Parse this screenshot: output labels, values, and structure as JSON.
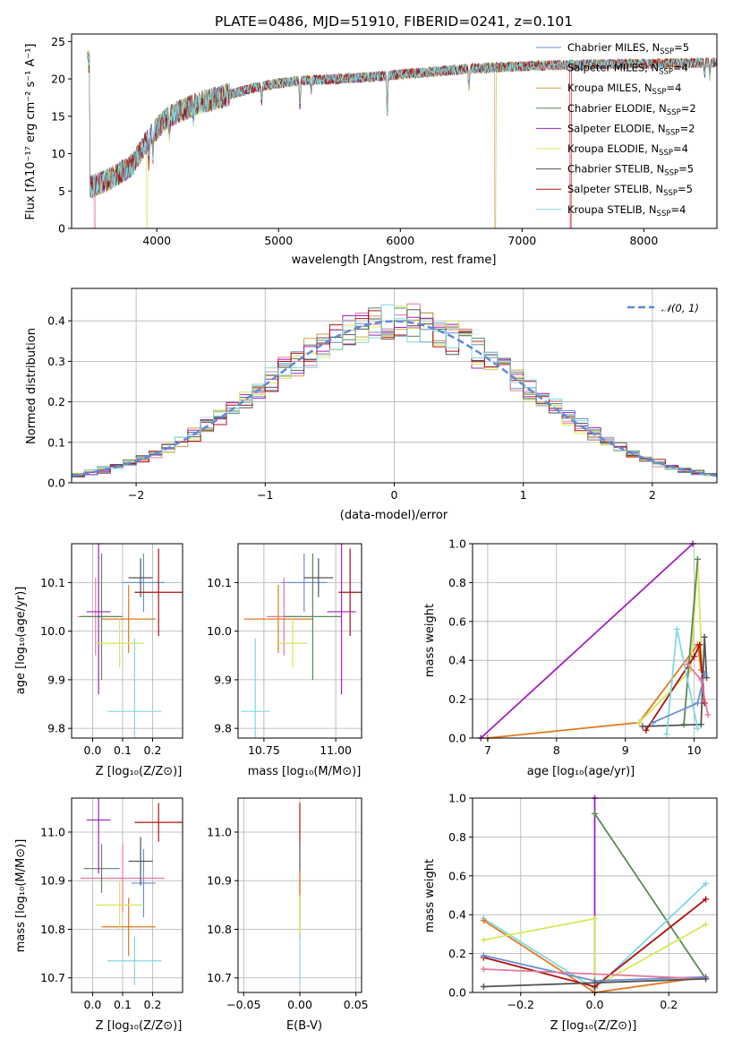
{
  "title": "PLATE=0486, MJD=51910, FIBERID=0241, z=0.101",
  "colors": {
    "Chabrier MILES": "#6a8fd6",
    "Salpeter MILES": "#e07a9a",
    "Kroupa MILES": "#c9a24b",
    "Chabrier ELODIE": "#5a8a5a",
    "Salpeter ELODIE": "#a020c0",
    "Kroupa ELODIE": "#d6e85a",
    "Chabrier STELIB": "#555555",
    "Salpeter STELIB": "#b01010",
    "Kroupa STELIB": "#80d8e0",
    "orange": "#e07a20",
    "gaussian": "#5b8bd9"
  },
  "panel1": {
    "xlabel": "wavelength [Angstrom, rest frame]",
    "ylabel": "Flux [fλ10⁻¹⁷ erg cm⁻² s⁻¹ A⁻¹]",
    "legend": [
      {
        "model": "Chabrier MILES",
        "label": "Chabrier MILES, N",
        "sub": "SSP",
        "n": "=5"
      },
      {
        "model": "Salpeter MILES",
        "label": "Salpeter MILES, N",
        "sub": "SSP",
        "n": "=4"
      },
      {
        "model": "Kroupa MILES",
        "label": "Kroupa MILES, N",
        "sub": "SSP",
        "n": "=4"
      },
      {
        "model": "Chabrier ELODIE",
        "label": "Chabrier ELODIE, N",
        "sub": "SSP",
        "n": "=2"
      },
      {
        "model": "Salpeter ELODIE",
        "label": "Salpeter ELODIE, N",
        "sub": "SSP",
        "n": "=2"
      },
      {
        "model": "Kroupa ELODIE",
        "label": "Kroupa ELODIE, N",
        "sub": "SSP",
        "n": "=4"
      },
      {
        "model": "Chabrier STELIB",
        "label": "Chabrier STELIB, N",
        "sub": "SSP",
        "n": "=5"
      },
      {
        "model": "Salpeter STELIB",
        "label": "Salpeter STELIB, N",
        "sub": "SSP",
        "n": "=5"
      },
      {
        "model": "Kroupa STELIB",
        "label": "Kroupa STELIB, N",
        "sub": "SSP",
        "n": "=4"
      }
    ]
  },
  "panel2": {
    "xlabel": "(data-model)/error",
    "ylabel": "Normed distribution",
    "legend_label": "𝒩(0, 1)"
  },
  "panel3": {
    "xlabel": "Z [log₁₀(Z/Z⊙)]",
    "ylabel": "age  [log₁₀(age/yr)]"
  },
  "panel4": {
    "xlabel": "mass [log₁₀(M/M⊙)]"
  },
  "panel5": {
    "xlabel": "age  [log₁₀(age/yr)]",
    "ylabel": "mass weight"
  },
  "panel6": {
    "xlabel": "Z [log₁₀(Z/Z⊙)]",
    "ylabel": "mass [log₁₀(M/M⊙)]"
  },
  "panel7": {
    "xlabel": "E(B-V)"
  },
  "panel8": {
    "xlabel": "Z [log₁₀(Z/Z⊙)]",
    "ylabel": "mass weight"
  },
  "chart_data": [
    {
      "type": "line",
      "id": "spectrum",
      "xlim": [
        3300,
        8600
      ],
      "ylim": [
        0,
        26
      ],
      "xticks": [
        4000,
        5000,
        6000,
        7000,
        8000
      ],
      "yticks": [
        0,
        5,
        10,
        15,
        20,
        25
      ],
      "grid": false,
      "legend_position": "top-right",
      "continuum": {
        "x": [
          3450,
          3600,
          3800,
          3950,
          4100,
          4300,
          4500,
          4800,
          5000,
          5200,
          5500,
          5800,
          6000,
          6300,
          6600,
          6900,
          7200,
          7500,
          7800,
          8100,
          8300,
          8600
        ],
        "y": [
          5.5,
          6.5,
          8.5,
          12.5,
          15.0,
          16.5,
          17.5,
          18.8,
          19.4,
          19.8,
          20.0,
          20.3,
          20.6,
          21.0,
          21.4,
          21.6,
          21.8,
          21.9,
          22.0,
          22.0,
          22.1,
          22.2
        ]
      },
      "dropouts": [
        {
          "model": "Salpeter MILES",
          "x": 3490
        },
        {
          "model": "Kroupa ELODIE",
          "x": 3920
        },
        {
          "model": "Kroupa MILES",
          "x": 6780
        },
        {
          "model": "Salpeter STELIB",
          "x": 7400
        }
      ]
    },
    {
      "type": "histogram",
      "id": "residuals",
      "xlim": [
        -2.5,
        2.5
      ],
      "ylim": [
        0,
        0.48
      ],
      "xticks": [
        -2,
        -1,
        0,
        1,
        2
      ],
      "yticks": [
        0.0,
        0.1,
        0.2,
        0.3,
        0.4
      ],
      "grid": true,
      "legend_position": "top-right",
      "bin_width": 0.1,
      "gaussian": {
        "mean": 0,
        "sigma": 1
      }
    },
    {
      "type": "errorbar",
      "id": "age-vs-Z",
      "xlim": [
        -0.07,
        0.3
      ],
      "ylim": [
        9.78,
        10.18
      ],
      "xticks": [
        0.0,
        0.1,
        0.2
      ],
      "yticks": [
        9.8,
        9.9,
        10.0,
        10.1
      ],
      "grid": true,
      "points": [
        {
          "model": "Chabrier MILES",
          "x": 0.17,
          "xerr": 0.07,
          "y": 10.1,
          "yerr": 0.06
        },
        {
          "model": "Salpeter MILES",
          "x": 0.01,
          "xerr": 0.06,
          "y": 10.03,
          "yerr": 0.08
        },
        {
          "model": "orange",
          "x": 0.12,
          "xerr": 0.09,
          "y": 10.025,
          "yerr": 0.07
        },
        {
          "model": "Chabrier ELODIE",
          "x": 0.03,
          "xerr": 0.07,
          "y": 10.03,
          "yerr": 0.13
        },
        {
          "model": "Salpeter ELODIE",
          "x": 0.02,
          "xerr": 0.04,
          "y": 10.04,
          "yerr": 0.17
        },
        {
          "model": "Kroupa ELODIE",
          "x": 0.09,
          "xerr": 0.08,
          "y": 9.975,
          "yerr": 0.05
        },
        {
          "model": "Chabrier STELIB",
          "x": 0.16,
          "xerr": 0.04,
          "y": 10.11,
          "yerr": 0.04
        },
        {
          "model": "Salpeter STELIB",
          "x": 0.22,
          "xerr": 0.08,
          "y": 10.08,
          "yerr": 0.09
        },
        {
          "model": "Kroupa STELIB",
          "x": 0.14,
          "xerr": 0.09,
          "y": 9.835,
          "yerr": 0.15
        }
      ]
    },
    {
      "type": "errorbar",
      "id": "age-vs-mass",
      "xlim": [
        10.66,
        11.09
      ],
      "ylim": [
        9.78,
        10.18
      ],
      "xticks": [
        10.75,
        11.0
      ],
      "yticks": [
        9.8,
        9.9,
        10.0,
        10.1
      ],
      "grid": true,
      "points": [
        {
          "model": "Chabrier MILES",
          "x": 10.89,
          "xerr": 0.08,
          "y": 10.1,
          "yerr": 0.06
        },
        {
          "model": "Salpeter MILES",
          "x": 10.82,
          "xerr": 0.06,
          "y": 10.03,
          "yerr": 0.08
        },
        {
          "model": "orange",
          "x": 10.8,
          "xerr": 0.12,
          "y": 10.025,
          "yerr": 0.07
        },
        {
          "model": "Chabrier ELODIE",
          "x": 10.92,
          "xerr": 0.1,
          "y": 10.03,
          "yerr": 0.13
        },
        {
          "model": "Salpeter ELODIE",
          "x": 11.02,
          "xerr": 0.05,
          "y": 10.04,
          "yerr": 0.17
        },
        {
          "model": "Kroupa ELODIE",
          "x": 10.85,
          "xerr": 0.05,
          "y": 9.975,
          "yerr": 0.05
        },
        {
          "model": "Chabrier STELIB",
          "x": 10.94,
          "xerr": 0.05,
          "y": 10.11,
          "yerr": 0.04
        },
        {
          "model": "Salpeter STELIB",
          "x": 11.05,
          "xerr": 0.04,
          "y": 10.08,
          "yerr": 0.09
        },
        {
          "model": "Kroupa STELIB",
          "x": 10.72,
          "xerr": 0.05,
          "y": 9.835,
          "yerr": 0.15
        }
      ]
    },
    {
      "type": "line",
      "id": "weight-vs-age",
      "xlim": [
        6.78,
        10.33
      ],
      "ylim": [
        0,
        1
      ],
      "xticks": [
        7,
        8,
        9,
        10
      ],
      "yticks": [
        0.0,
        0.2,
        0.4,
        0.6,
        0.8,
        1.0
      ],
      "grid": true,
      "series": [
        {
          "model": "Salpeter ELODIE",
          "x": [
            6.9,
            9.98
          ],
          "y": [
            0.0,
            1.0
          ]
        },
        {
          "model": "orange",
          "x": [
            7.0,
            9.2,
            10.05,
            10.1
          ],
          "y": [
            0.0,
            0.08,
            0.48,
            0.35
          ]
        },
        {
          "model": "Kroupa ELODIE",
          "x": [
            9.2,
            9.95,
            10.05,
            10.12
          ],
          "y": [
            0.08,
            0.35,
            0.92,
            0.31
          ]
        },
        {
          "model": "Chabrier ELODIE",
          "x": [
            9.85,
            10.05
          ],
          "y": [
            0.07,
            0.92
          ]
        },
        {
          "model": "Chabrier STELIB",
          "x": [
            9.25,
            10.1,
            10.15,
            10.18
          ],
          "y": [
            0.06,
            0.07,
            0.52,
            0.31
          ]
        },
        {
          "model": "Salpeter STELIB",
          "x": [
            9.3,
            10.0,
            10.08,
            10.15
          ],
          "y": [
            0.04,
            0.42,
            0.48,
            0.18
          ]
        },
        {
          "model": "Kroupa STELIB",
          "x": [
            9.6,
            9.75,
            10.05
          ],
          "y": [
            0.02,
            0.56,
            0.05
          ]
        },
        {
          "model": "Chabrier MILES",
          "x": [
            9.4,
            10.05,
            10.15
          ],
          "y": [
            0.08,
            0.18,
            0.33
          ]
        },
        {
          "model": "Salpeter MILES",
          "x": [
            9.9,
            10.1,
            10.2
          ],
          "y": [
            0.38,
            0.3,
            0.12
          ]
        }
      ]
    },
    {
      "type": "errorbar",
      "id": "mass-vs-Z",
      "xlim": [
        -0.07,
        0.3
      ],
      "ylim": [
        10.67,
        11.07
      ],
      "xticks": [
        0.0,
        0.1,
        0.2
      ],
      "yticks": [
        10.7,
        10.8,
        10.9,
        11.0
      ],
      "grid": true,
      "points": [
        {
          "model": "Chabrier MILES",
          "x": 0.17,
          "xerr": 0.04,
          "y": 10.895,
          "yerr": 0.07
        },
        {
          "model": "Salpeter MILES",
          "x": 0.1,
          "xerr": 0.14,
          "y": 10.905,
          "yerr": 0.07
        },
        {
          "model": "orange",
          "x": 0.12,
          "xerr": 0.09,
          "y": 10.805,
          "yerr": 0.06
        },
        {
          "model": "Chabrier ELODIE",
          "x": 0.03,
          "xerr": 0.06,
          "y": 10.925,
          "yerr": 0.05
        },
        {
          "model": "Salpeter ELODIE",
          "x": 0.02,
          "xerr": 0.04,
          "y": 11.025,
          "yerr": 0.11
        },
        {
          "model": "Kroupa ELODIE",
          "x": 0.09,
          "xerr": 0.08,
          "y": 10.85,
          "yerr": 0.05
        },
        {
          "model": "Chabrier STELIB",
          "x": 0.16,
          "xerr": 0.04,
          "y": 10.94,
          "yerr": 0.05
        },
        {
          "model": "Salpeter STELIB",
          "x": 0.22,
          "xerr": 0.08,
          "y": 11.02,
          "yerr": 0.04
        },
        {
          "model": "Kroupa STELIB",
          "x": 0.14,
          "xerr": 0.09,
          "y": 10.735,
          "yerr": 0.05
        }
      ]
    },
    {
      "type": "errorbar",
      "id": "mass-vs-ebv",
      "xlim": [
        -0.055,
        0.055
      ],
      "ylim": [
        10.67,
        11.07
      ],
      "xticks": [
        -0.05,
        0.0,
        0.05
      ],
      "yticks": [
        10.7,
        10.8,
        10.9,
        11.0
      ],
      "grid": true,
      "points": [
        {
          "model": "Salpeter STELIB",
          "x": 0.0,
          "xerr": 0,
          "y": 11.02,
          "yerr": 0.04
        },
        {
          "model": "Chabrier STELIB",
          "x": 0.0,
          "xerr": 0,
          "y": 10.9,
          "yerr": 0.08
        },
        {
          "model": "orange",
          "x": 0.0,
          "xerr": 0,
          "y": 10.85,
          "yerr": 0.07
        },
        {
          "model": "Kroupa ELODIE",
          "x": 0.0,
          "xerr": 0,
          "y": 10.83,
          "yerr": 0.04
        },
        {
          "model": "Kroupa STELIB",
          "x": 0.0,
          "xerr": 0,
          "y": 10.74,
          "yerr": 0.05
        }
      ]
    },
    {
      "type": "line",
      "id": "weight-vs-Z",
      "xlim": [
        -0.33,
        0.33
      ],
      "ylim": [
        0,
        1
      ],
      "xticks": [
        -0.2,
        0.0,
        0.2
      ],
      "yticks": [
        0.0,
        0.2,
        0.4,
        0.6,
        0.8,
        1.0
      ],
      "grid": true,
      "series": [
        {
          "model": "Salpeter ELODIE",
          "x": [
            0.0,
            0.0
          ],
          "y": [
            0.0,
            1.0
          ]
        },
        {
          "model": "Chabrier ELODIE",
          "x": [
            0.0,
            0.3
          ],
          "y": [
            0.92,
            0.07
          ]
        },
        {
          "model": "Kroupa STELIB",
          "x": [
            -0.3,
            0.0,
            0.3
          ],
          "y": [
            0.38,
            0.02,
            0.56
          ]
        },
        {
          "model": "orange",
          "x": [
            -0.3,
            0.0,
            0.3
          ],
          "y": [
            0.37,
            0.0,
            0.08
          ]
        },
        {
          "model": "Kroupa ELODIE",
          "x": [
            -0.3,
            0.0,
            0.0,
            0.3
          ],
          "y": [
            0.27,
            0.38,
            0.03,
            0.35
          ]
        },
        {
          "model": "Salpeter STELIB",
          "x": [
            -0.3,
            0.0,
            0.3
          ],
          "y": [
            0.18,
            0.03,
            0.48
          ]
        },
        {
          "model": "Chabrier MILES",
          "x": [
            -0.3,
            0.0,
            0.3
          ],
          "y": [
            0.19,
            0.06,
            0.08
          ]
        },
        {
          "model": "Salpeter MILES",
          "x": [
            -0.3,
            0.3
          ],
          "y": [
            0.12,
            0.07
          ]
        },
        {
          "model": "Chabrier STELIB",
          "x": [
            -0.3,
            0.0,
            0.3
          ],
          "y": [
            0.03,
            0.05,
            0.07
          ]
        }
      ]
    }
  ]
}
